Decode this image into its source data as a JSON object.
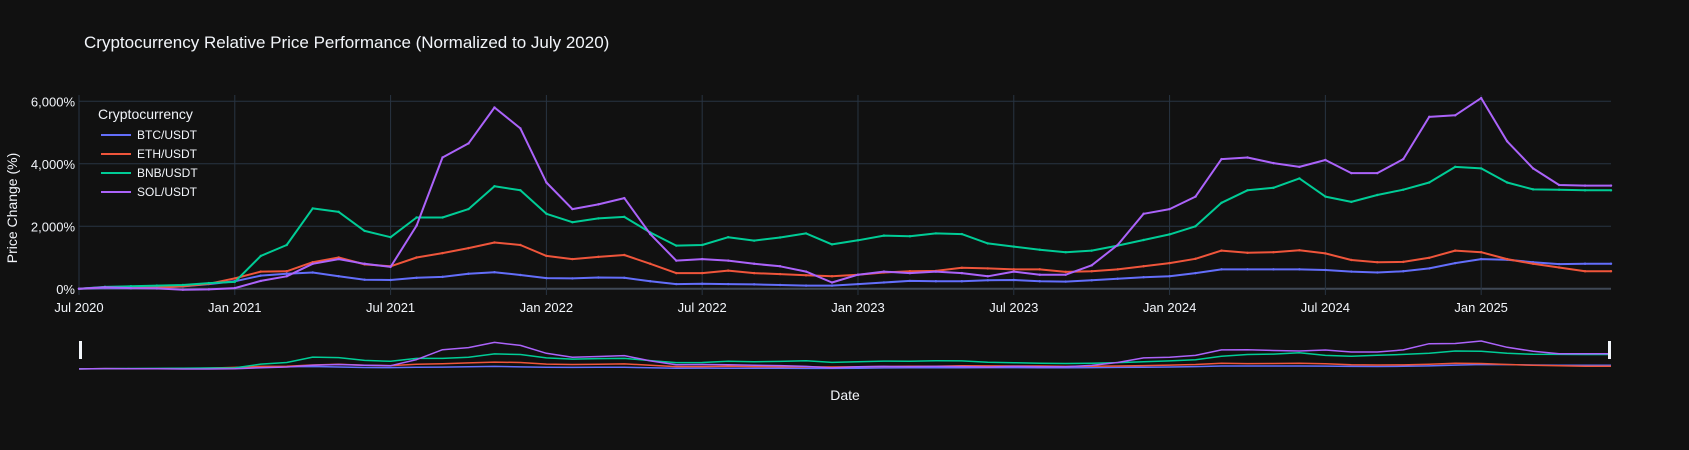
{
  "chart_data": {
    "type": "line",
    "title": "Cryptocurrency Relative Price Performance (Normalized to July 2020)",
    "xlabel": "Date",
    "ylabel": "Price Change (%)",
    "legend_title": "Cryptocurrency",
    "legend_position": "top-left",
    "grid": true,
    "range_slider": true,
    "ylim": [
      -200,
      6200
    ],
    "y_ticks": [
      {
        "value": 0,
        "label": "0%"
      },
      {
        "value": 2000,
        "label": "2,000%"
      },
      {
        "value": 4000,
        "label": "4,000%"
      },
      {
        "value": 6000,
        "label": "6,000%"
      }
    ],
    "x_range": [
      "2020-07",
      "2025-06"
    ],
    "x_ticks": [
      {
        "date": "2020-07",
        "label": "Jul 2020"
      },
      {
        "date": "2021-01",
        "label": "Jan 2021"
      },
      {
        "date": "2021-07",
        "label": "Jul 2021"
      },
      {
        "date": "2022-01",
        "label": "Jan 2022"
      },
      {
        "date": "2022-07",
        "label": "Jul 2022"
      },
      {
        "date": "2023-01",
        "label": "Jan 2023"
      },
      {
        "date": "2023-07",
        "label": "Jul 2023"
      },
      {
        "date": "2024-01",
        "label": "Jan 2024"
      },
      {
        "date": "2024-07",
        "label": "Jul 2024"
      },
      {
        "date": "2025-01",
        "label": "Jan 2025"
      }
    ],
    "x": [
      "2020-07",
      "2020-08",
      "2020-09",
      "2020-10",
      "2020-11",
      "2020-12",
      "2021-01",
      "2021-02",
      "2021-03",
      "2021-04",
      "2021-05",
      "2021-06",
      "2021-07",
      "2021-08",
      "2021-09",
      "2021-10",
      "2021-11",
      "2021-12",
      "2022-01",
      "2022-02",
      "2022-03",
      "2022-04",
      "2022-05",
      "2022-06",
      "2022-07",
      "2022-08",
      "2022-09",
      "2022-10",
      "2022-11",
      "2022-12",
      "2023-01",
      "2023-02",
      "2023-03",
      "2023-04",
      "2023-05",
      "2023-06",
      "2023-07",
      "2023-08",
      "2023-09",
      "2023-10",
      "2023-11",
      "2023-12",
      "2024-01",
      "2024-02",
      "2024-03",
      "2024-04",
      "2024-05",
      "2024-06",
      "2024-07",
      "2024-08",
      "2024-09",
      "2024-10",
      "2024-11",
      "2024-12",
      "2025-01",
      "2025-02",
      "2025-03",
      "2025-04",
      "2025-05",
      "2025-06"
    ],
    "series": [
      {
        "name": "BTC/USDT",
        "color": "#636efa",
        "values": [
          0,
          25,
          20,
          40,
          75,
          150,
          240,
          420,
          480,
          520,
          400,
          290,
          280,
          350,
          380,
          480,
          530,
          440,
          340,
          330,
          360,
          350,
          240,
          150,
          160,
          150,
          140,
          120,
          100,
          100,
          150,
          200,
          250,
          240,
          240,
          270,
          280,
          240,
          230,
          270,
          320,
          370,
          400,
          500,
          620,
          620,
          620,
          620,
          600,
          550,
          520,
          560,
          650,
          820,
          950,
          930,
          850,
          790,
          800,
          800
        ]
      },
      {
        "name": "ETH/USDT",
        "color": "#ef553b",
        "values": [
          0,
          50,
          40,
          35,
          80,
          160,
          330,
          550,
          560,
          850,
          1000,
          780,
          720,
          1000,
          1140,
          1300,
          1480,
          1400,
          1050,
          950,
          1020,
          1080,
          800,
          500,
          500,
          580,
          500,
          470,
          430,
          400,
          450,
          520,
          560,
          570,
          670,
          650,
          620,
          620,
          540,
          560,
          620,
          720,
          820,
          960,
          1220,
          1150,
          1170,
          1230,
          1130,
          920,
          850,
          860,
          990,
          1220,
          1170,
          950,
          800,
          680,
          560,
          560
        ]
      },
      {
        "name": "BNB/USDT",
        "color": "#00cc96",
        "values": [
          0,
          60,
          80,
          100,
          120,
          180,
          220,
          1050,
          1400,
          2570,
          2460,
          1850,
          1650,
          2280,
          2280,
          2550,
          3280,
          3150,
          2400,
          2130,
          2250,
          2300,
          1800,
          1380,
          1400,
          1650,
          1540,
          1640,
          1770,
          1420,
          1550,
          1700,
          1680,
          1770,
          1750,
          1450,
          1350,
          1250,
          1170,
          1220,
          1380,
          1560,
          1740,
          2000,
          2750,
          3150,
          3230,
          3530,
          2950,
          2780,
          3000,
          3170,
          3400,
          3900,
          3850,
          3400,
          3180,
          3170,
          3150,
          3150
        ]
      },
      {
        "name": "SOL/USDT",
        "color": "#ab63fa",
        "values": [
          0,
          50,
          20,
          10,
          -30,
          -20,
          20,
          250,
          400,
          800,
          950,
          800,
          700,
          2020,
          4200,
          4650,
          5800,
          5130,
          3400,
          2550,
          2700,
          2900,
          1750,
          900,
          950,
          900,
          800,
          720,
          550,
          200,
          450,
          550,
          500,
          550,
          500,
          400,
          550,
          450,
          450,
          750,
          1400,
          2400,
          2550,
          2950,
          4150,
          4200,
          4020,
          3900,
          4120,
          3700,
          3700,
          4150,
          5500,
          5550,
          6100,
          4720,
          3850,
          3320,
          3300,
          3300
        ]
      }
    ]
  }
}
